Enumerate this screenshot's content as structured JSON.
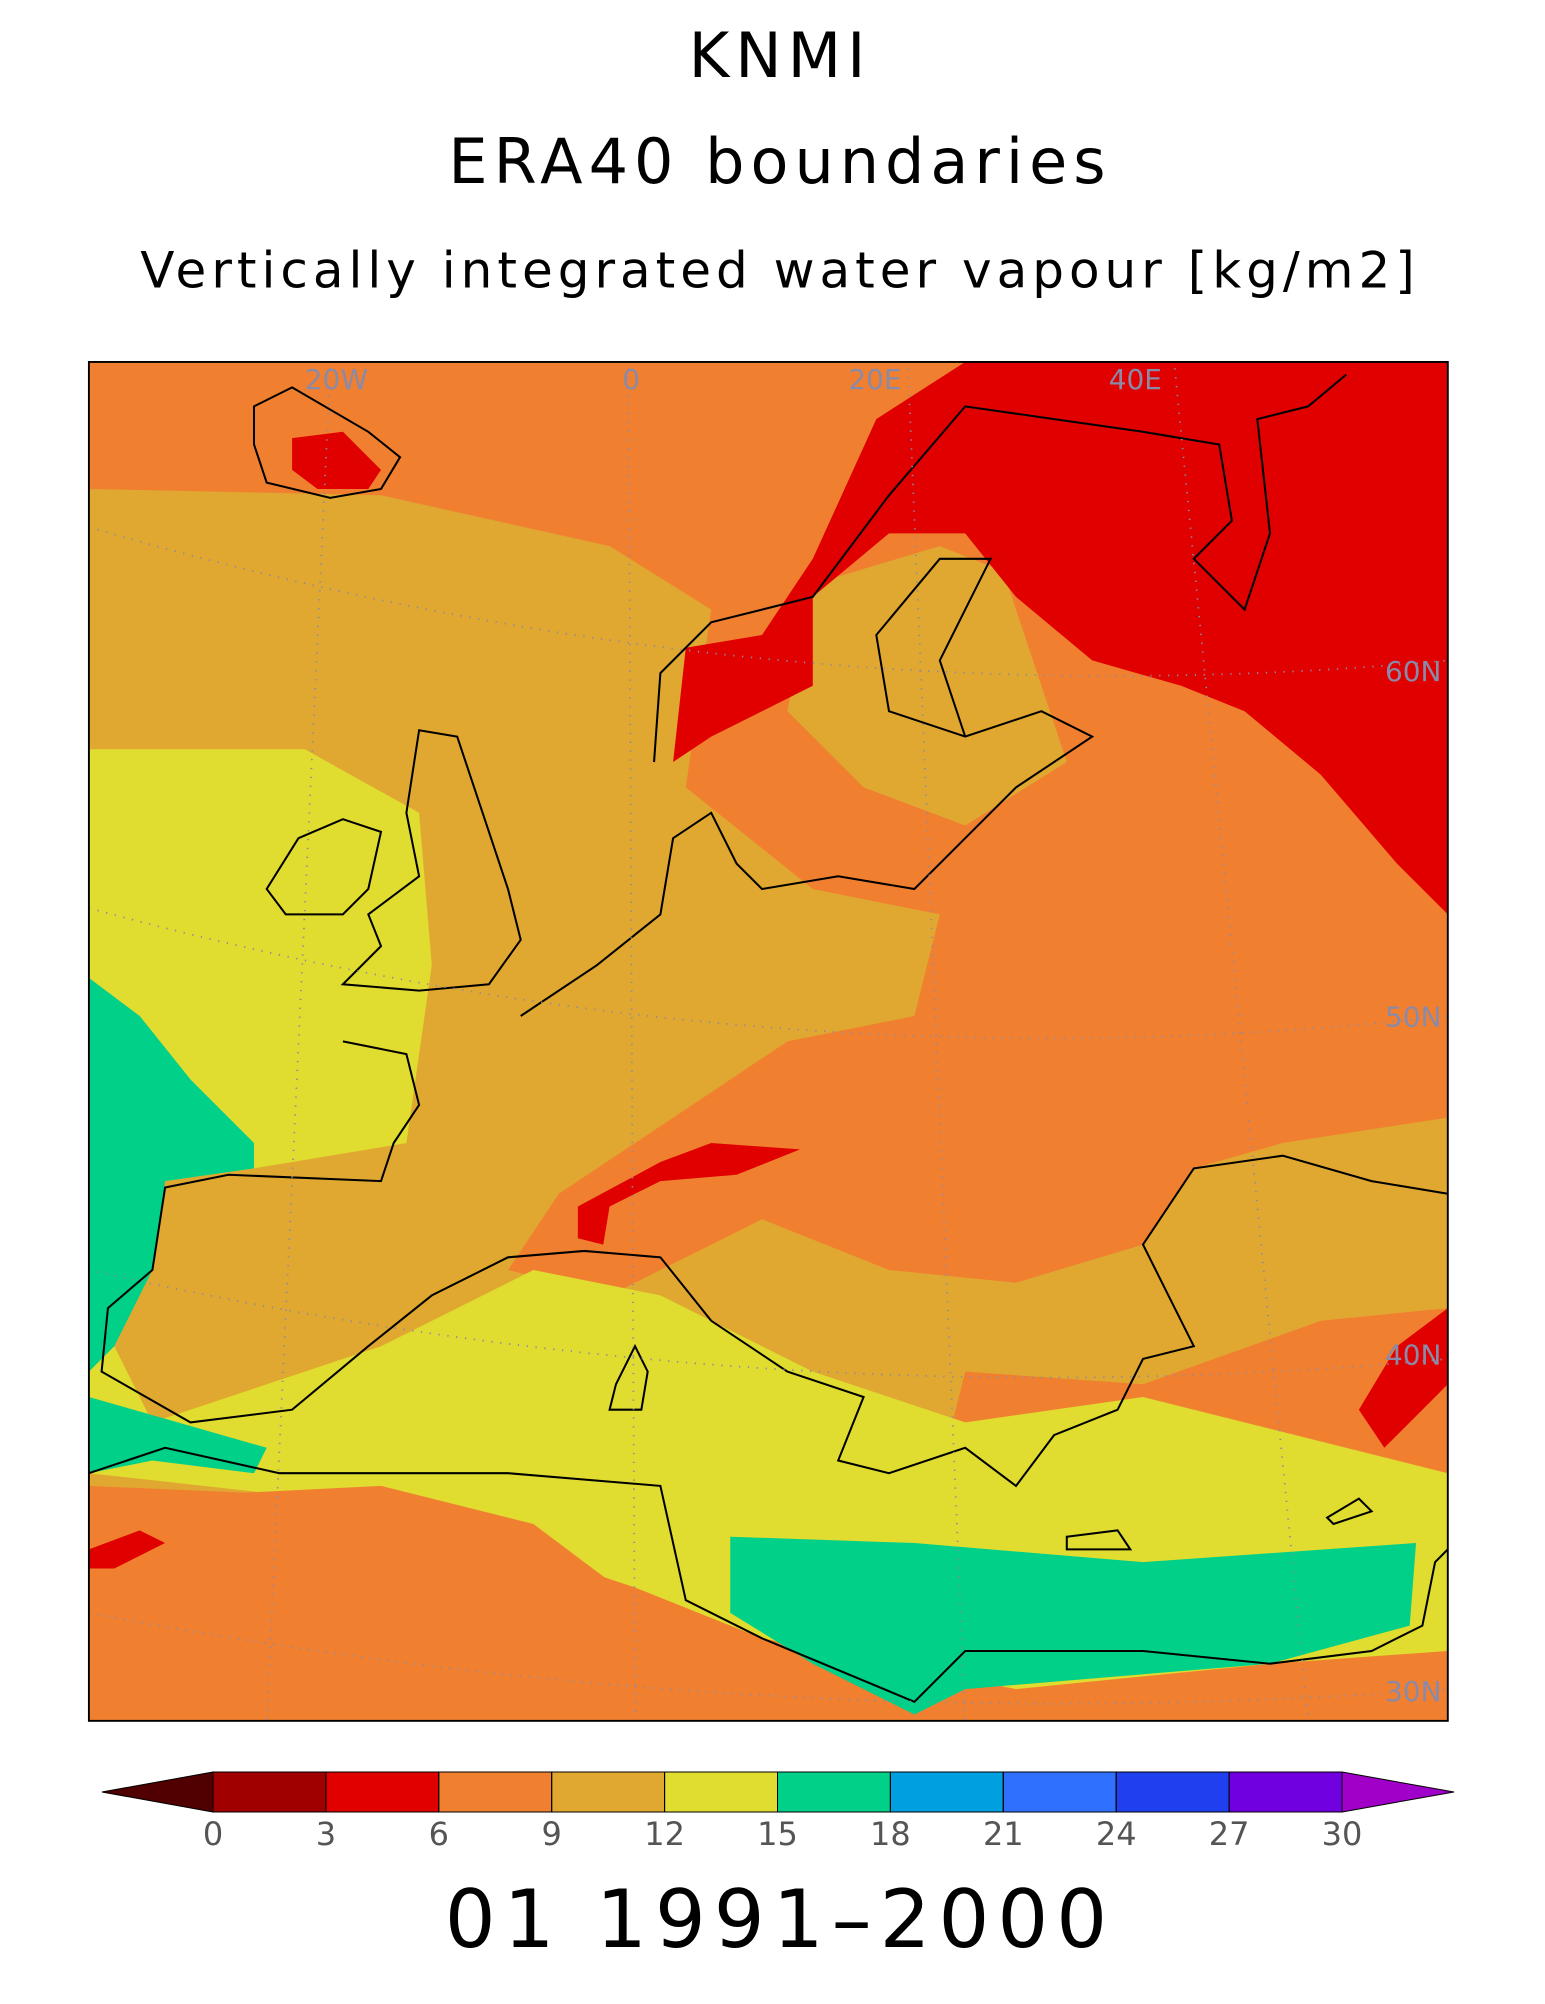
{
  "header": {
    "title": "KNMI",
    "subtitle": "ERA40 boundaries",
    "variable": "Vertically integrated water vapour [kg/m2]"
  },
  "map": {
    "grid_labels": [
      "20W",
      "0",
      "20E",
      "40E",
      "60N",
      "50N",
      "40N",
      "30N"
    ]
  },
  "colorbar": {
    "ticks": [
      0,
      3,
      6,
      9,
      12,
      15,
      18,
      21,
      24,
      27,
      30
    ],
    "colors": [
      "#a00000",
      "#e00000",
      "#f08030",
      "#e0a830",
      "#e0dc30",
      "#00d088",
      "#00a0e0",
      "#3070ff",
      "#2040f0",
      "#7000e0"
    ],
    "under_color": "#500000",
    "over_color": "#a000c8"
  },
  "footer": "01 1991–2000"
}
